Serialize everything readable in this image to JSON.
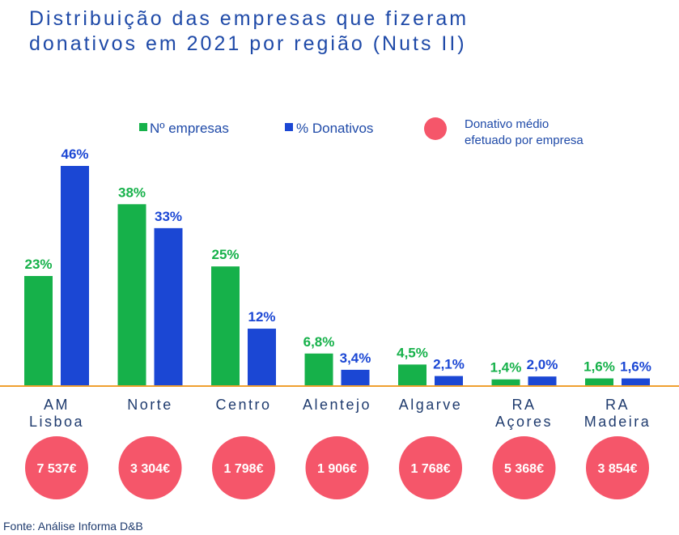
{
  "title_lines": [
    "Distribuição das empresas que fizeram",
    "donativos em 2021 por região (Nuts II)"
  ],
  "source": "Fonte: Análise Informa D&B",
  "colors": {
    "empresas": "#16b14a",
    "donativos": "#1b47d4",
    "circle": "#f5566a",
    "axis": "#f0a030",
    "title": "#1f4aa8"
  },
  "chart_data": {
    "type": "bar",
    "categories": [
      [
        "AM",
        "Lisboa"
      ],
      [
        "Norte"
      ],
      [
        "Centro"
      ],
      [
        "Alentejo"
      ],
      [
        "Algarve"
      ],
      [
        "RA",
        "Açores"
      ],
      [
        "RA",
        "Madeira"
      ]
    ],
    "series": [
      {
        "name": "Nº empresas",
        "values": [
          23,
          38,
          25,
          6.8,
          4.5,
          1.4,
          1.6
        ],
        "labels": [
          "23%",
          "38%",
          "25%",
          "6,8%",
          "4,5%",
          "1,4%",
          "1,6%"
        ]
      },
      {
        "name": "% Donativos",
        "values": [
          46,
          33,
          12,
          3.4,
          2.1,
          2.0,
          1.6
        ],
        "labels": [
          "46%",
          "33%",
          "12%",
          "3,4%",
          "2,1%",
          "2,0%",
          "1,6%"
        ]
      }
    ],
    "donativo_medio": {
      "name": "Donativo médio efetuado por empresa",
      "legend_lines": [
        "Donativo médio",
        "efetuado por empresa"
      ],
      "values": [
        7537,
        3304,
        1798,
        1906,
        1768,
        5368,
        3854
      ],
      "labels": [
        "7 537€",
        "3 304€",
        "1 798€",
        "1 906€",
        "1 768€",
        "5 368€",
        "3 854€"
      ]
    },
    "ylim": [
      0,
      46
    ],
    "legend_position": "top"
  }
}
